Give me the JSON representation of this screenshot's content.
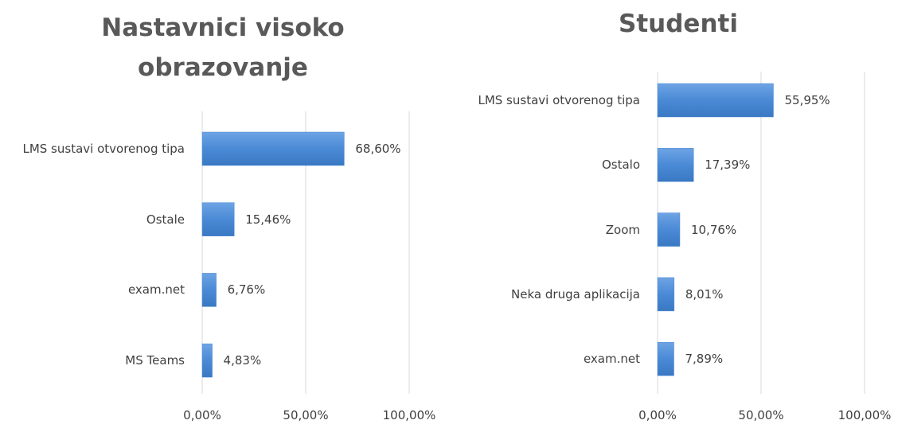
{
  "chart_data": [
    {
      "type": "bar",
      "orientation": "horizontal",
      "title": "Nastavnici visoko obrazovanje",
      "categories": [
        "LMS sustavi otvorenog tipa",
        "Ostale",
        "exam.net",
        "MS Teams"
      ],
      "values": [
        68.6,
        15.46,
        6.76,
        4.83
      ],
      "value_labels": [
        "68,60%",
        "15,46%",
        "6,76%",
        "4,83%"
      ],
      "color": "#4a8ad6",
      "xlim": [
        0,
        100
      ],
      "xticks": [
        {
          "value": 0,
          "label": "0,00%"
        },
        {
          "value": 50,
          "label": "50,00%"
        },
        {
          "value": 100,
          "label": "100,00%"
        }
      ],
      "grid": true
    },
    {
      "type": "bar",
      "orientation": "horizontal",
      "title": "Studenti",
      "categories": [
        "LMS sustavi otvorenog tipa",
        "Ostalo",
        "Zoom",
        "Neka druga aplikacija",
        "exam.net"
      ],
      "values": [
        55.95,
        17.39,
        10.76,
        8.01,
        7.89
      ],
      "value_labels": [
        "55,95%",
        "17,39%",
        "10,76%",
        "8,01%",
        "7,89%"
      ],
      "color": "#4a8ad6",
      "xlim": [
        0,
        100
      ],
      "xticks": [
        {
          "value": 0,
          "label": "0,00%"
        },
        {
          "value": 50,
          "label": "50,00%"
        },
        {
          "value": 100,
          "label": "100,00%"
        }
      ],
      "grid": true
    }
  ]
}
